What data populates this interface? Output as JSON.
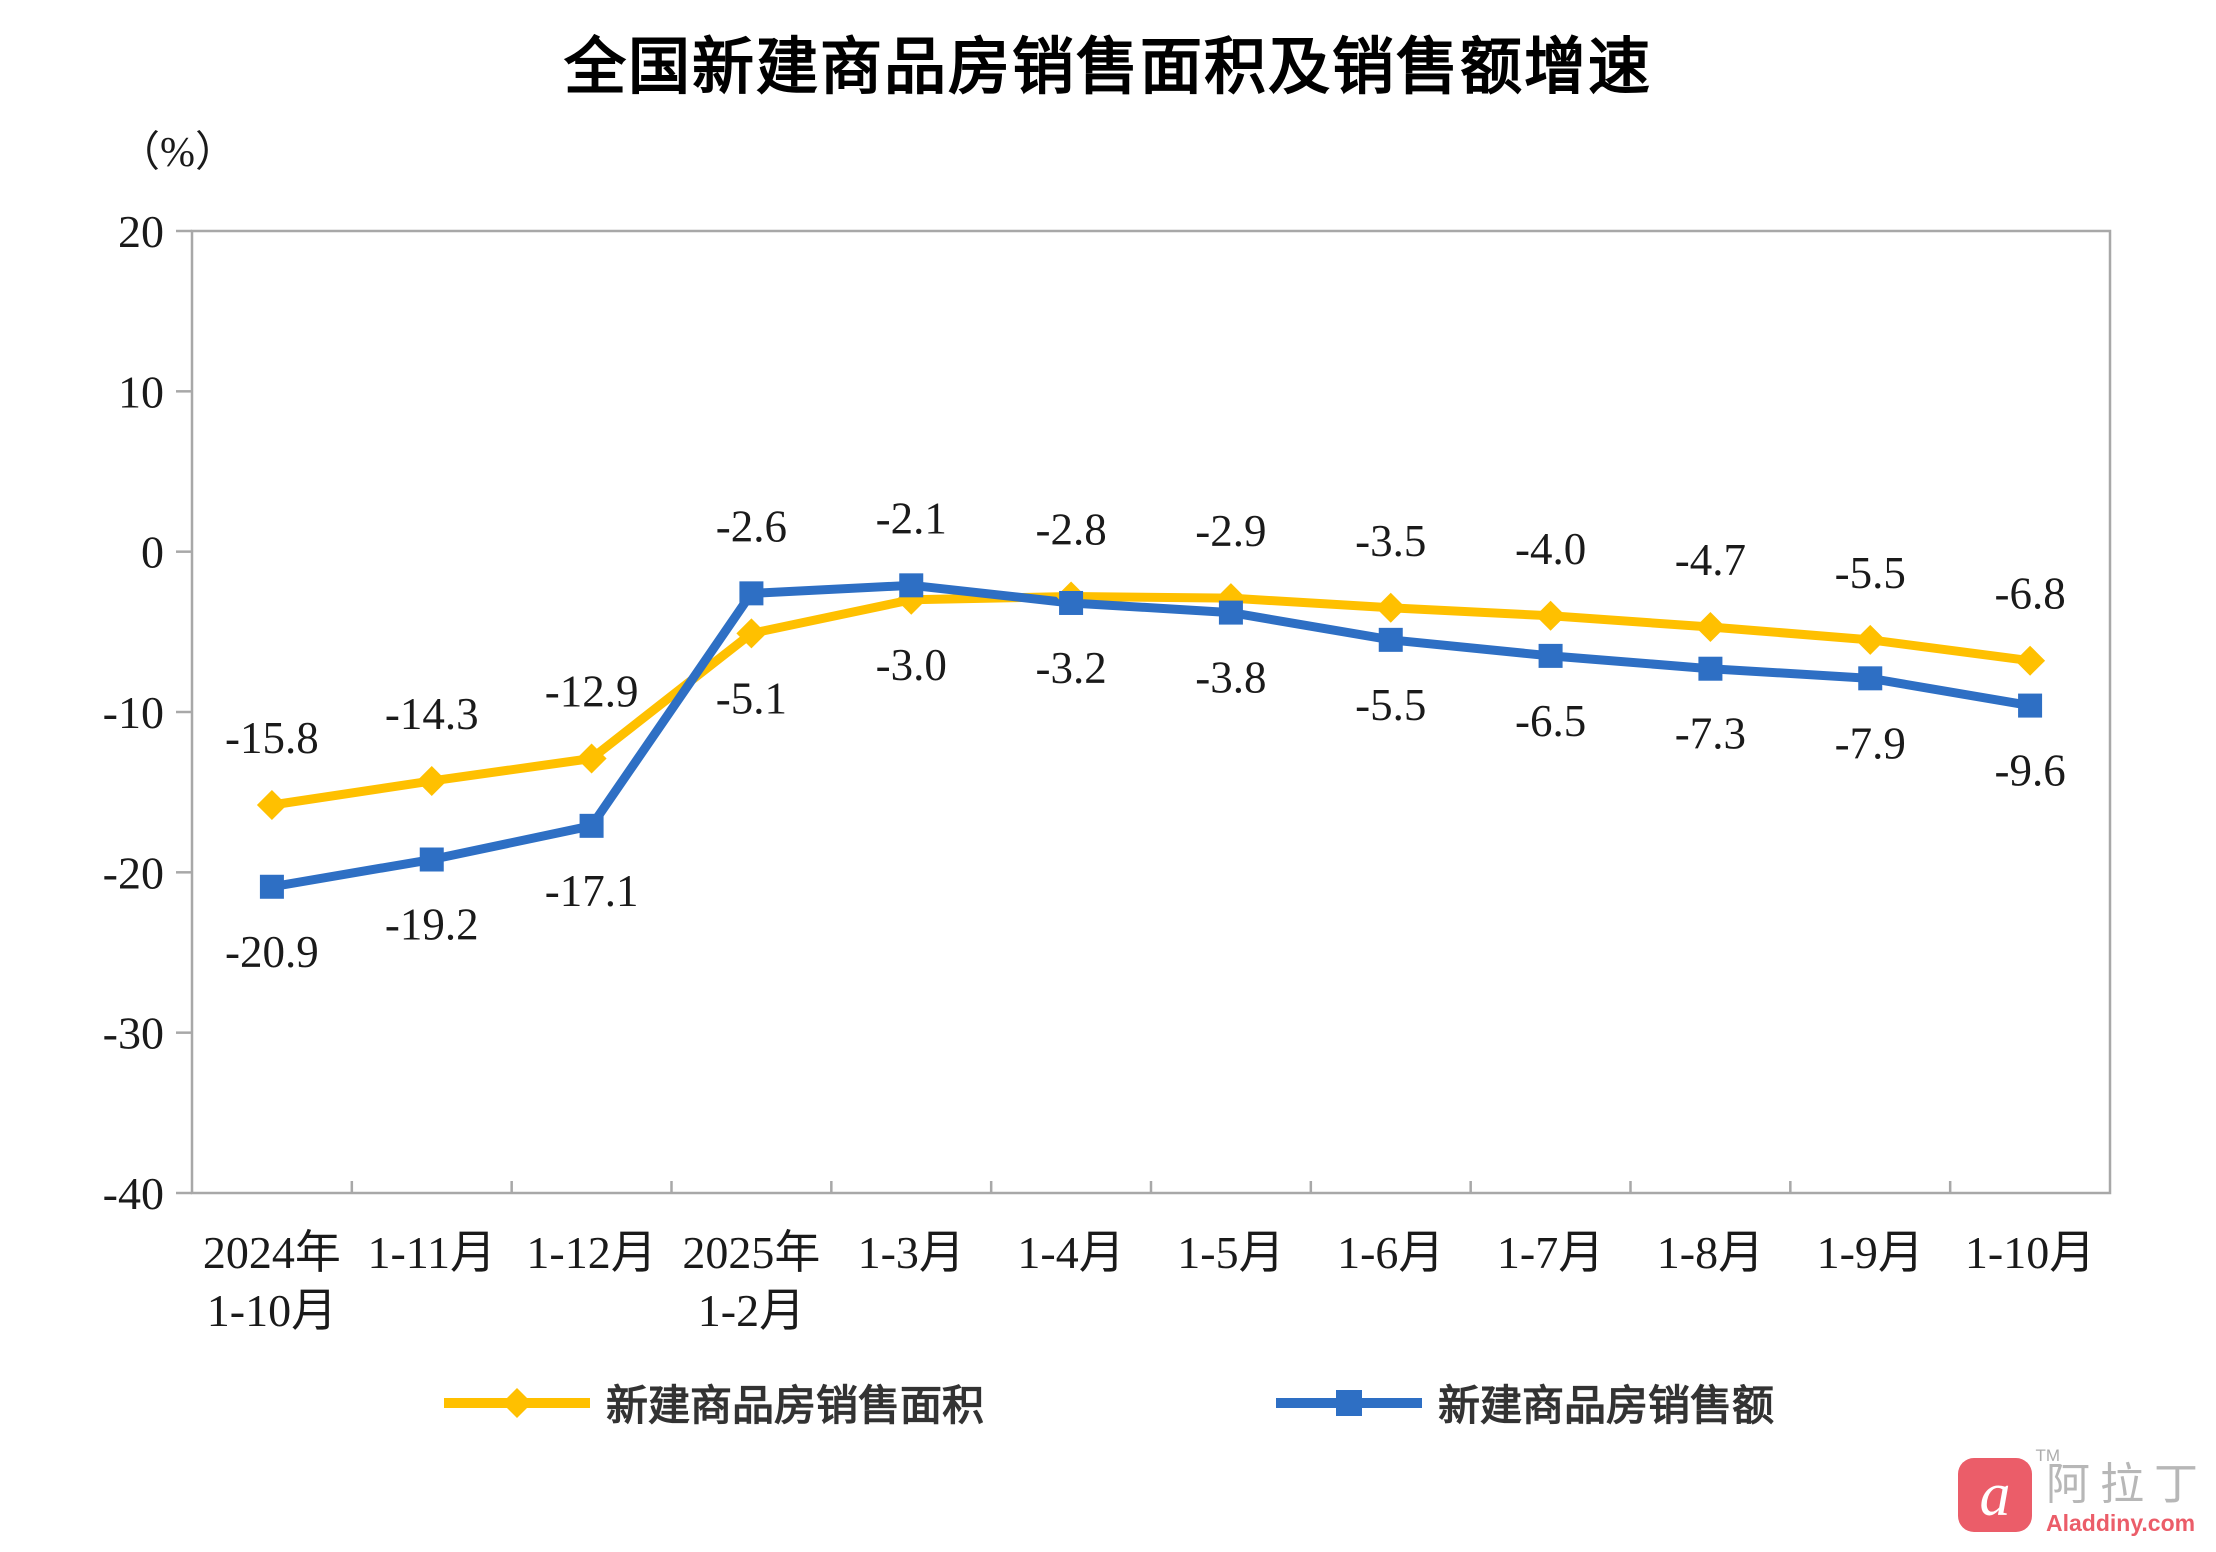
{
  "header": {
    "title": "全国新建商品房销售面积及销售额增速"
  },
  "axis": {
    "unit_label": "（%）"
  },
  "chart_data": {
    "type": "line",
    "title": "全国新建商品房销售面积及销售额增速",
    "ylabel": "（%）",
    "ylim": [
      -40,
      20
    ],
    "yticks": [
      20,
      10,
      0,
      -10,
      -20,
      -30,
      -40
    ],
    "grid": false,
    "legend_position": "bottom",
    "categories": [
      "2024年\n1-10月",
      "1-11月",
      "1-12月",
      "2025年\n1-2月",
      "1-3月",
      "1-4月",
      "1-5月",
      "1-6月",
      "1-7月",
      "1-8月",
      "1-9月",
      "1-10月"
    ],
    "series": [
      {
        "name": "新建商品房销售面积",
        "marker": "diamond",
        "color": "#FFC000",
        "values": [
          -15.8,
          -14.3,
          -12.9,
          -5.1,
          -3.0,
          -2.8,
          -2.9,
          -3.5,
          -4.0,
          -4.7,
          -5.5,
          -6.8
        ]
      },
      {
        "name": "新建商品房销售额",
        "marker": "square",
        "color": "#2E6FC4",
        "values": [
          -20.9,
          -19.2,
          -17.1,
          -2.6,
          -2.1,
          -3.2,
          -3.8,
          -5.5,
          -6.5,
          -7.3,
          -7.9,
          -9.6
        ]
      }
    ],
    "axis_color": "#A8A8A8",
    "label_color": "#1A1A1A"
  },
  "legend": {
    "items": [
      {
        "label": "新建商品房销售面积"
      },
      {
        "label": "新建商品房销售额"
      }
    ]
  },
  "watermark": {
    "logo_letter": "a",
    "tm_label": "TM",
    "brand_name": "阿拉丁",
    "site_label": "Aladdiny.com",
    "accent_color": "#E8414F",
    "gray_color": "#ABABAB"
  }
}
